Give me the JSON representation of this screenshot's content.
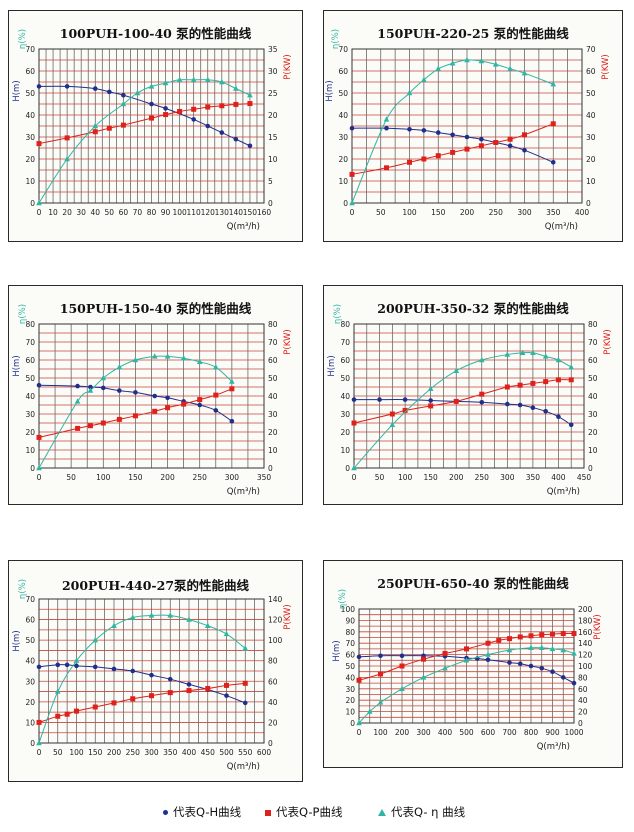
{
  "colors": {
    "head": "#1f2f8c",
    "power": "#e0201a",
    "efficiency": "#2fb6a2",
    "grid_h": "#c9463d",
    "grid_v": "#555555"
  },
  "legend": {
    "head_label": "代表Q-H曲线",
    "power_label": "代表Q-P曲线",
    "efficiency_label": "代表Q- η 曲线"
  },
  "chart_data": [
    {
      "type": "line",
      "title": "100PUH-100-40 泵的性能曲线",
      "xlabel": "Q(m³/h)",
      "ylabel_left": "H(m)",
      "ylabel_eta": "η(%)",
      "ylabel_right": "P(KW)",
      "xlim": [
        0,
        160
      ],
      "xticks": [
        0,
        10,
        20,
        30,
        40,
        50,
        60,
        70,
        80,
        90,
        100,
        110,
        120,
        130,
        140,
        150,
        160
      ],
      "ylim_left": [
        0,
        70
      ],
      "yticks_left": [
        0,
        10,
        20,
        30,
        40,
        50,
        60,
        70
      ],
      "ylim_right": [
        0,
        35
      ],
      "yticks_right": [
        0,
        5,
        10,
        15,
        20,
        25,
        30,
        35
      ],
      "series": [
        {
          "key": "head",
          "axis": "left",
          "x": [
            0,
            20,
            40,
            50,
            60,
            80,
            90,
            110,
            120,
            130,
            140,
            150
          ],
          "y": [
            53,
            53,
            52,
            50.5,
            49,
            45,
            43,
            38,
            35,
            32,
            29,
            26
          ]
        },
        {
          "key": "power",
          "axis": "right",
          "x": [
            0,
            20,
            40,
            50,
            60,
            80,
            90,
            100,
            110,
            120,
            130,
            140,
            150
          ],
          "y": [
            13.5,
            14.8,
            16.2,
            17,
            17.7,
            19.3,
            20.1,
            20.8,
            21.3,
            21.8,
            22.1,
            22.4,
            22.6
          ]
        },
        {
          "key": "efficiency",
          "axis": "left",
          "x": [
            0,
            20,
            40,
            60,
            70,
            80,
            90,
            100,
            110,
            120,
            130,
            140,
            150
          ],
          "y": [
            0,
            20,
            35,
            45,
            50,
            53,
            54.5,
            56,
            56,
            56,
            55,
            52,
            49
          ]
        }
      ]
    },
    {
      "type": "line",
      "title": "150PUH-220-25 泵的性能曲线",
      "xlabel": "Q(m³/h)",
      "ylabel_left": "H(m)",
      "ylabel_eta": "η(%)",
      "ylabel_right": "P(KW)",
      "xlim": [
        0,
        400
      ],
      "xticks": [
        0,
        50,
        100,
        150,
        200,
        250,
        300,
        350,
        400
      ],
      "ylim_left": [
        0,
        70
      ],
      "yticks_left": [
        0,
        10,
        20,
        30,
        40,
        50,
        60,
        70
      ],
      "ylim_right": [
        0,
        70
      ],
      "yticks_right": [
        0,
        10,
        20,
        30,
        40,
        50,
        60,
        70
      ],
      "series": [
        {
          "key": "head",
          "axis": "left",
          "x": [
            0,
            60,
            100,
            125,
            150,
            175,
            200,
            225,
            250,
            275,
            300,
            350
          ],
          "y": [
            34,
            34,
            33.5,
            33,
            32,
            31,
            30,
            29,
            27.5,
            26,
            24,
            18.5
          ]
        },
        {
          "key": "power",
          "axis": "right",
          "x": [
            0,
            60,
            100,
            125,
            150,
            175,
            200,
            225,
            250,
            275,
            300,
            350
          ],
          "y": [
            13,
            16,
            18.5,
            20,
            21.5,
            23,
            24.5,
            26,
            27.5,
            29,
            31,
            36
          ]
        },
        {
          "key": "efficiency",
          "axis": "left",
          "x": [
            0,
            60,
            100,
            125,
            150,
            175,
            200,
            225,
            250,
            275,
            300,
            350
          ],
          "y": [
            0,
            38,
            50,
            56,
            61,
            63.5,
            65,
            64.5,
            63,
            61,
            59,
            54
          ]
        }
      ]
    },
    {
      "type": "line",
      "title": "150PUH-150-40 泵的性能曲线",
      "xlabel": "Q(m³/h)",
      "ylabel_left": "H(m)",
      "ylabel_eta": "η(%)",
      "ylabel_right": "P(KW)",
      "xlim": [
        0,
        350
      ],
      "xticks": [
        0,
        50,
        100,
        150,
        200,
        250,
        300,
        350
      ],
      "ylim_left": [
        0,
        80
      ],
      "yticks_left": [
        0,
        10,
        20,
        30,
        40,
        50,
        60,
        70,
        80
      ],
      "ylim_right": [
        0,
        80
      ],
      "yticks_right": [
        0,
        10,
        20,
        30,
        40,
        50,
        60,
        70,
        80
      ],
      "series": [
        {
          "key": "head",
          "axis": "left",
          "x": [
            0,
            60,
            80,
            100,
            125,
            150,
            180,
            200,
            225,
            250,
            275,
            300
          ],
          "y": [
            46,
            45.5,
            45,
            44.5,
            43,
            42,
            40,
            39,
            37,
            35,
            32,
            26
          ]
        },
        {
          "key": "power",
          "axis": "right",
          "x": [
            0,
            60,
            80,
            100,
            125,
            150,
            180,
            200,
            225,
            250,
            275,
            300
          ],
          "y": [
            17,
            22,
            23.5,
            25,
            27,
            29,
            31.5,
            33.5,
            35.5,
            38,
            40.5,
            44
          ]
        },
        {
          "key": "efficiency",
          "axis": "left",
          "x": [
            0,
            60,
            80,
            100,
            125,
            150,
            180,
            200,
            225,
            250,
            275,
            300
          ],
          "y": [
            0,
            37,
            43,
            50,
            56,
            60,
            62,
            62,
            61,
            59,
            56,
            48
          ]
        }
      ]
    },
    {
      "type": "line",
      "title": "200PUH-350-32 泵的性能曲线",
      "xlabel": "Q(m³/h)",
      "ylabel_left": "H(m)",
      "ylabel_eta": "η(%)",
      "ylabel_right": "P(KW)",
      "xlim": [
        0,
        450
      ],
      "xticks": [
        0,
        50,
        100,
        150,
        200,
        250,
        300,
        350,
        400,
        450
      ],
      "ylim_left": [
        0,
        80
      ],
      "yticks_left": [
        0,
        10,
        20,
        30,
        40,
        50,
        60,
        70,
        80
      ],
      "ylim_right": [
        0,
        80
      ],
      "yticks_right": [
        0,
        10,
        20,
        30,
        40,
        50,
        60,
        70,
        80
      ],
      "series": [
        {
          "key": "head",
          "axis": "left",
          "x": [
            0,
            50,
            100,
            150,
            200,
            250,
            300,
            325,
            350,
            375,
            400,
            425
          ],
          "y": [
            38,
            38,
            38,
            37.5,
            37,
            36.5,
            35.5,
            35,
            33.5,
            31.5,
            28.5,
            24
          ]
        },
        {
          "key": "power",
          "axis": "right",
          "x": [
            0,
            75,
            100,
            150,
            200,
            250,
            300,
            325,
            350,
            375,
            400,
            425
          ],
          "y": [
            25,
            30,
            32,
            34.5,
            37,
            41,
            45,
            46,
            47,
            48,
            49,
            49
          ]
        },
        {
          "key": "efficiency",
          "axis": "left",
          "x": [
            0,
            75,
            150,
            200,
            250,
            300,
            330,
            350,
            375,
            400,
            425
          ],
          "y": [
            0,
            24,
            44,
            54,
            60,
            63,
            64,
            64,
            62,
            60,
            56
          ]
        }
      ]
    },
    {
      "type": "line",
      "title": "200PUH-440-27泵的性能曲线",
      "xlabel": "Q(m³/h)",
      "ylabel_left": "H(m)",
      "ylabel_eta": "η(%)",
      "ylabel_right": "P(KW)",
      "xlim": [
        0,
        600
      ],
      "xticks": [
        0,
        50,
        100,
        150,
        200,
        250,
        300,
        350,
        400,
        450,
        500,
        550,
        600
      ],
      "ylim_left": [
        0,
        70
      ],
      "yticks_left": [
        0,
        10,
        20,
        30,
        40,
        50,
        60,
        70
      ],
      "ylim_right": [
        0,
        140
      ],
      "yticks_right": [
        0,
        20,
        40,
        60,
        80,
        100,
        120,
        140
      ],
      "series": [
        {
          "key": "head",
          "axis": "left",
          "x": [
            0,
            50,
            75,
            100,
            150,
            200,
            250,
            300,
            350,
            400,
            450,
            500,
            550
          ],
          "y": [
            37,
            38,
            38,
            37.5,
            37,
            36,
            35,
            33,
            31,
            28.5,
            26,
            23,
            19.5
          ]
        },
        {
          "key": "power",
          "axis": "right",
          "x": [
            0,
            50,
            75,
            100,
            150,
            200,
            250,
            300,
            350,
            400,
            450,
            500,
            550
          ],
          "y": [
            20,
            26,
            28,
            31,
            35,
            39,
            43,
            46,
            49,
            51,
            53,
            56,
            58
          ]
        },
        {
          "key": "efficiency",
          "axis": "left",
          "x": [
            0,
            50,
            100,
            150,
            200,
            250,
            300,
            350,
            400,
            450,
            500,
            550
          ],
          "y": [
            0,
            25,
            40,
            50,
            57,
            61,
            62,
            62,
            60,
            57,
            53,
            46
          ]
        }
      ]
    },
    {
      "type": "line",
      "title": "250PUH-650-40 泵的性能曲线",
      "xlabel": "Q(m³/h)",
      "ylabel_left": "H(m)",
      "ylabel_eta": "η(%)",
      "ylabel_right": "P(KW)",
      "xlim": [
        0,
        1000
      ],
      "xticks": [
        0,
        100,
        200,
        300,
        400,
        500,
        600,
        700,
        800,
        900,
        1000
      ],
      "ylim_left": [
        0,
        100
      ],
      "yticks_left": [
        0,
        10,
        20,
        30,
        40,
        50,
        60,
        70,
        80,
        90,
        100
      ],
      "ylim_right": [
        0,
        200
      ],
      "yticks_right": [
        0,
        20,
        40,
        60,
        80,
        100,
        120,
        140,
        160,
        180,
        200
      ],
      "series": [
        {
          "key": "head",
          "axis": "left",
          "x": [
            0,
            100,
            200,
            300,
            400,
            500,
            550,
            600,
            700,
            750,
            800,
            850,
            900,
            950,
            1000
          ],
          "y": [
            58,
            59,
            59,
            59,
            58.5,
            57,
            56.5,
            55.5,
            53,
            52,
            50,
            48,
            45,
            40,
            35
          ]
        },
        {
          "key": "power",
          "axis": "right",
          "x": [
            0,
            100,
            200,
            300,
            400,
            500,
            600,
            650,
            700,
            750,
            800,
            850,
            900,
            950,
            1000
          ],
          "y": [
            75,
            86,
            100,
            112,
            122,
            130,
            140,
            145,
            148,
            151,
            153,
            155,
            156,
            157,
            157
          ]
        },
        {
          "key": "efficiency",
          "axis": "left",
          "x": [
            0,
            50,
            100,
            200,
            300,
            400,
            500,
            600,
            700,
            800,
            850,
            900,
            950,
            1000
          ],
          "y": [
            0,
            10,
            18,
            30,
            40,
            48,
            55,
            60,
            64,
            66,
            66,
            65,
            64,
            61
          ]
        }
      ]
    }
  ]
}
